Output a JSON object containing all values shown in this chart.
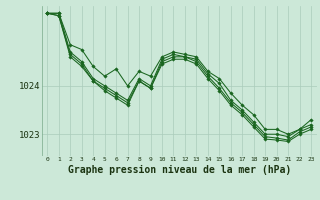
{
  "bg_color": "#cce8d8",
  "grid_color": "#aaccbb",
  "line_color": "#1a6620",
  "marker_color": "#1a6620",
  "xlabel": "Graphe pression niveau de la mer (hPa)",
  "xlabel_fontsize": 7,
  "xlabel_bold": true,
  "ylim": [
    1022.55,
    1025.65
  ],
  "xlim": [
    -0.5,
    23.5
  ],
  "yticks": [
    1023,
    1024
  ],
  "xticks": [
    0,
    1,
    2,
    3,
    4,
    5,
    6,
    7,
    8,
    9,
    10,
    11,
    12,
    13,
    14,
    15,
    16,
    17,
    18,
    19,
    20,
    21,
    22,
    23
  ],
  "series": [
    [
      1025.5,
      1025.5,
      1024.85,
      1024.75,
      1024.4,
      1024.2,
      1024.35,
      1024.0,
      1024.3,
      1024.2,
      1024.6,
      1024.7,
      1024.65,
      1024.6,
      1024.3,
      1024.15,
      1023.85,
      1023.6,
      1023.4,
      1023.1,
      1023.1,
      1023.0,
      1023.1,
      1023.3
    ],
    [
      1025.5,
      1025.5,
      1024.7,
      1024.5,
      1024.15,
      1024.0,
      1023.85,
      1023.7,
      1024.15,
      1024.0,
      1024.55,
      1024.65,
      1024.6,
      1024.55,
      1024.25,
      1024.05,
      1023.7,
      1023.5,
      1023.25,
      1023.0,
      1023.0,
      1022.95,
      1023.1,
      1023.2
    ],
    [
      1025.5,
      1025.45,
      1024.65,
      1024.45,
      1024.1,
      1023.95,
      1023.8,
      1023.65,
      1024.1,
      1023.95,
      1024.5,
      1024.6,
      1024.6,
      1024.5,
      1024.2,
      1023.95,
      1023.65,
      1023.45,
      1023.2,
      1022.95,
      1022.92,
      1022.88,
      1023.05,
      1023.15
    ],
    [
      1025.5,
      1025.45,
      1024.6,
      1024.4,
      1024.1,
      1023.9,
      1023.75,
      1023.6,
      1024.1,
      1023.95,
      1024.45,
      1024.55,
      1024.55,
      1024.45,
      1024.15,
      1023.9,
      1023.6,
      1023.4,
      1023.15,
      1022.9,
      1022.88,
      1022.85,
      1023.0,
      1023.1
    ]
  ]
}
